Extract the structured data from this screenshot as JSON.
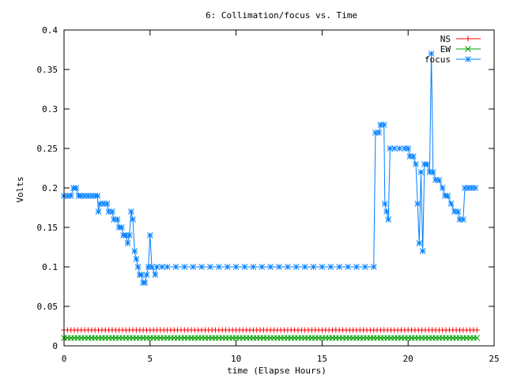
{
  "chart_data": {
    "type": "line",
    "title": "6: Collimation/focus vs. Time",
    "xlabel": "time (Elapse Hours)",
    "ylabel": "Volts",
    "xlim": [
      0,
      25
    ],
    "ylim": [
      0,
      0.4
    ],
    "xticks": [
      "0",
      "5",
      "10",
      "15",
      "20",
      "25"
    ],
    "yticks": [
      "0",
      "0.05",
      "0.1",
      "0.15",
      "0.2",
      "0.25",
      "0.3",
      "0.35",
      "0.4"
    ],
    "grid": false,
    "legend_position": "top-right",
    "series": [
      {
        "name": "NS",
        "color": "#ff0000",
        "marker": "plus",
        "constant": 0.02,
        "x_range": [
          0,
          24
        ]
      },
      {
        "name": "EW",
        "color": "#00a000",
        "marker": "cross",
        "constant": 0.01,
        "x_range": [
          0,
          24
        ]
      },
      {
        "name": "focus",
        "color": "#0080ff",
        "marker": "star",
        "points": [
          [
            0,
            0.19
          ],
          [
            0.2,
            0.19
          ],
          [
            0.4,
            0.19
          ],
          [
            0.55,
            0.2
          ],
          [
            0.7,
            0.2
          ],
          [
            0.85,
            0.19
          ],
          [
            1.0,
            0.19
          ],
          [
            1.2,
            0.19
          ],
          [
            1.4,
            0.19
          ],
          [
            1.6,
            0.19
          ],
          [
            1.8,
            0.19
          ],
          [
            1.95,
            0.19
          ],
          [
            2.0,
            0.17
          ],
          [
            2.1,
            0.18
          ],
          [
            2.3,
            0.18
          ],
          [
            2.5,
            0.18
          ],
          [
            2.6,
            0.17
          ],
          [
            2.8,
            0.17
          ],
          [
            2.9,
            0.16
          ],
          [
            3.1,
            0.16
          ],
          [
            3.2,
            0.15
          ],
          [
            3.35,
            0.15
          ],
          [
            3.45,
            0.14
          ],
          [
            3.6,
            0.14
          ],
          [
            3.7,
            0.13
          ],
          [
            3.8,
            0.14
          ],
          [
            3.9,
            0.17
          ],
          [
            4.0,
            0.16
          ],
          [
            4.1,
            0.12
          ],
          [
            4.2,
            0.11
          ],
          [
            4.3,
            0.1
          ],
          [
            4.4,
            0.09
          ],
          [
            4.5,
            0.09
          ],
          [
            4.6,
            0.08
          ],
          [
            4.7,
            0.08
          ],
          [
            4.8,
            0.09
          ],
          [
            4.9,
            0.1
          ],
          [
            5.0,
            0.14
          ],
          [
            5.1,
            0.1
          ],
          [
            5.3,
            0.09
          ],
          [
            5.4,
            0.1
          ],
          [
            5.7,
            0.1
          ],
          [
            6.0,
            0.1
          ],
          [
            6.5,
            0.1
          ],
          [
            7.0,
            0.1
          ],
          [
            7.5,
            0.1
          ],
          [
            8.0,
            0.1
          ],
          [
            8.5,
            0.1
          ],
          [
            9.0,
            0.1
          ],
          [
            9.5,
            0.1
          ],
          [
            10.0,
            0.1
          ],
          [
            10.5,
            0.1
          ],
          [
            11.0,
            0.1
          ],
          [
            11.5,
            0.1
          ],
          [
            12.0,
            0.1
          ],
          [
            12.5,
            0.1
          ],
          [
            13.0,
            0.1
          ],
          [
            13.5,
            0.1
          ],
          [
            14.0,
            0.1
          ],
          [
            14.5,
            0.1
          ],
          [
            15.0,
            0.1
          ],
          [
            15.5,
            0.1
          ],
          [
            16.0,
            0.1
          ],
          [
            16.5,
            0.1
          ],
          [
            17.0,
            0.1
          ],
          [
            17.5,
            0.1
          ],
          [
            18.0,
            0.1
          ],
          [
            18.1,
            0.27
          ],
          [
            18.3,
            0.27
          ],
          [
            18.4,
            0.28
          ],
          [
            18.6,
            0.28
          ],
          [
            18.65,
            0.18
          ],
          [
            18.75,
            0.17
          ],
          [
            18.85,
            0.16
          ],
          [
            18.95,
            0.25
          ],
          [
            19.2,
            0.25
          ],
          [
            19.5,
            0.25
          ],
          [
            19.8,
            0.25
          ],
          [
            20.0,
            0.25
          ],
          [
            20.1,
            0.24
          ],
          [
            20.3,
            0.24
          ],
          [
            20.45,
            0.23
          ],
          [
            20.55,
            0.18
          ],
          [
            20.65,
            0.13
          ],
          [
            20.75,
            0.22
          ],
          [
            20.85,
            0.12
          ],
          [
            20.95,
            0.23
          ],
          [
            21.1,
            0.23
          ],
          [
            21.25,
            0.22
          ],
          [
            21.35,
            0.37
          ],
          [
            21.45,
            0.22
          ],
          [
            21.6,
            0.21
          ],
          [
            21.8,
            0.21
          ],
          [
            22.0,
            0.2
          ],
          [
            22.15,
            0.19
          ],
          [
            22.3,
            0.19
          ],
          [
            22.5,
            0.18
          ],
          [
            22.7,
            0.17
          ],
          [
            22.9,
            0.17
          ],
          [
            23.0,
            0.16
          ],
          [
            23.2,
            0.16
          ],
          [
            23.3,
            0.2
          ],
          [
            23.5,
            0.2
          ],
          [
            23.7,
            0.2
          ],
          [
            23.9,
            0.2
          ]
        ]
      }
    ]
  }
}
